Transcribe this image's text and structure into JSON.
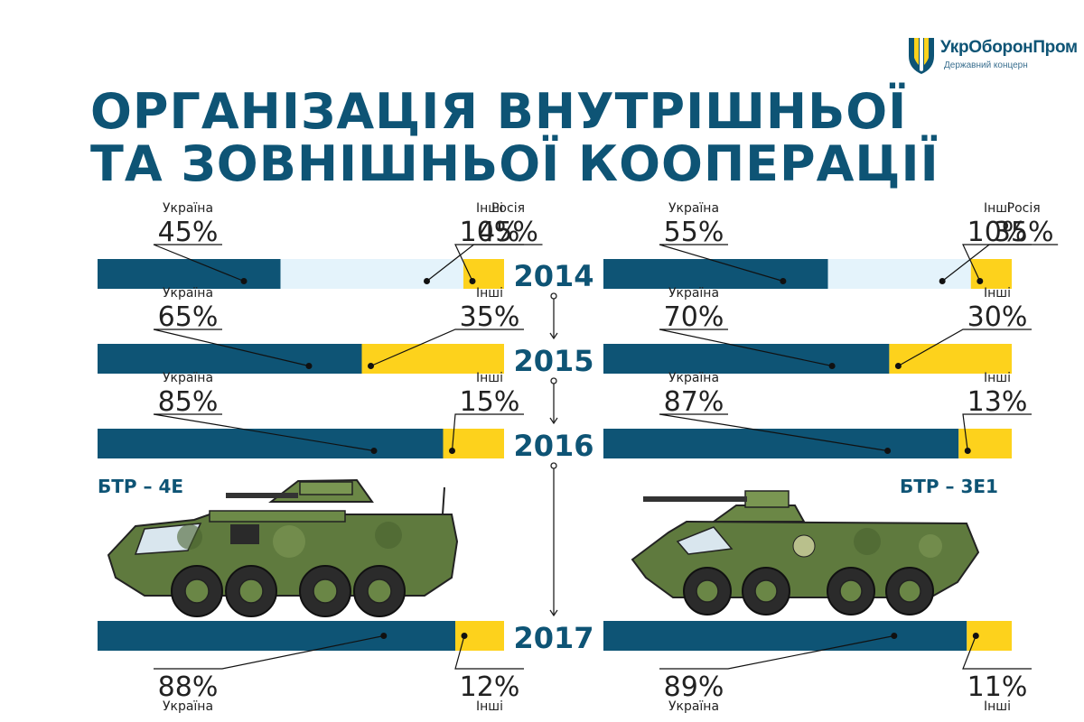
{
  "title": {
    "line1": "ОРГАНІЗАЦІЯ ВНУТРІШНЬОЇ",
    "line2": "ТА ЗОВНІШНЬОЇ КООПЕРАЦІЇ"
  },
  "logo": {
    "name": "УкрОборонПром",
    "subtitle": "Державний концерн"
  },
  "vehicles": {
    "left": "БТР – 4Е",
    "right": "БТР – 3Е1"
  },
  "colors": {
    "ukraine": "#0e5475",
    "russia": "#e4f3fb",
    "other": "#fdd21c",
    "text": "#0e5475"
  },
  "chart_data": [
    {
      "type": "bar",
      "orientation": "horizontal",
      "stacked": true,
      "subject": "БТР – 4Е",
      "categories": [
        "2014",
        "2015",
        "2016",
        "2017"
      ],
      "series": [
        {
          "name": "Україна",
          "values": [
            45,
            65,
            85,
            88
          ]
        },
        {
          "name": "Росія",
          "values": [
            45,
            0,
            0,
            0
          ]
        },
        {
          "name": "Інші",
          "values": [
            10,
            35,
            15,
            12
          ]
        }
      ],
      "unit": "%"
    },
    {
      "type": "bar",
      "orientation": "horizontal",
      "stacked": true,
      "subject": "БТР – 3Е1",
      "categories": [
        "2014",
        "2015",
        "2016",
        "2017"
      ],
      "series": [
        {
          "name": "Україна",
          "values": [
            55,
            70,
            87,
            89
          ]
        },
        {
          "name": "Росія",
          "values": [
            35,
            0,
            0,
            0
          ]
        },
        {
          "name": "Інші",
          "values": [
            10,
            30,
            13,
            11
          ]
        }
      ],
      "unit": "%"
    }
  ]
}
